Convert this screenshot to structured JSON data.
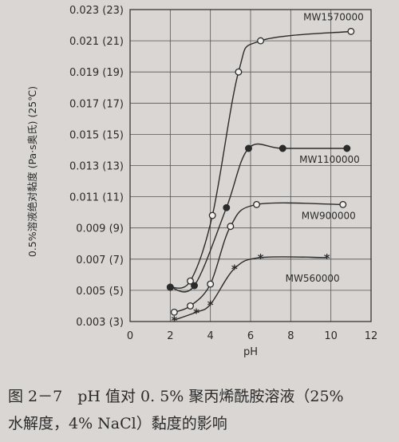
{
  "chart_data": {
    "type": "line",
    "xlabel": "pH",
    "ylabel": "0.5%溶液绝对黏度 (Pa·s奥氏) (25℃)",
    "xlim": [
      0,
      12
    ],
    "ylim": [
      0.003,
      0.023
    ],
    "x_ticks": [
      "0",
      "2",
      "4",
      "6",
      "8",
      "10",
      "12"
    ],
    "y_ticks": [
      "0.003 (3)",
      "0.005 (5)",
      "0.007 (7)",
      "0.009 (9)",
      "0.011 (11)",
      "0.013 (13)",
      "0.015 (15)",
      "0.017 (17)",
      "0.019 (19)",
      "0.021 (21)",
      "0.023 (23)"
    ],
    "grid": true,
    "series": [
      {
        "name": "MW1570000",
        "marker": "open-circle",
        "x": [
          2.0,
          3.0,
          4.1,
          5.4,
          6.5,
          11.0
        ],
        "y": [
          0.0052,
          0.0056,
          0.0098,
          0.019,
          0.021,
          0.0216
        ]
      },
      {
        "name": "MW1100000",
        "marker": "filled-circle",
        "x": [
          2.0,
          3.2,
          4.8,
          5.9,
          7.6,
          10.8
        ],
        "y": [
          0.0052,
          0.0053,
          0.0103,
          0.0141,
          0.0141,
          0.0141
        ]
      },
      {
        "name": "MW900000",
        "marker": "open-circle",
        "x": [
          2.2,
          3.0,
          4.0,
          5.0,
          6.3,
          10.6
        ],
        "y": [
          0.0036,
          0.004,
          0.0054,
          0.0091,
          0.0105,
          0.0105
        ]
      },
      {
        "name": "MW560000",
        "marker": "star",
        "x": [
          2.2,
          3.3,
          4.0,
          5.2,
          6.5,
          9.8
        ],
        "y": [
          0.0031,
          0.0036,
          0.0041,
          0.0064,
          0.0071,
          0.0071
        ]
      }
    ]
  },
  "caption": {
    "line1": "图 2－7　pH 值对 0. 5% 聚丙烯酰胺溶液（25%",
    "line2": "水解度，4% NaCl）黏度的影响"
  },
  "colors": {
    "background": "#d9d6d3",
    "ink": "#2b2b2b"
  }
}
